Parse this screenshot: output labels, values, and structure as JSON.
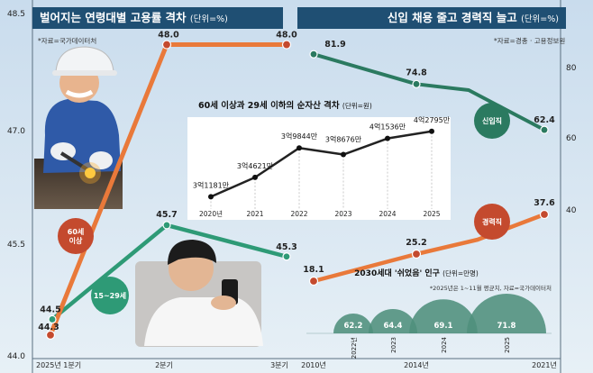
{
  "header_left": {
    "title": "벌어지는 연령대별 고용률 격차",
    "unit": "(단위=%)",
    "source": "*자료=국가데이터처"
  },
  "header_right": {
    "title": "신입 채용 줄고 경력직 늘고",
    "unit": "(단위=%)",
    "source": "*자료=경총 · 고용정보원"
  },
  "colors": {
    "header": "#1f4f73",
    "orange": "#e9793a",
    "green": "#2e9a76",
    "dark_green": "#2b7a60",
    "red": "#c44a2e",
    "dome": "#4f8f7c",
    "inset_line": "#222222"
  },
  "chart_data": [
    {
      "type": "line",
      "categories": [
        "2025년 1분기",
        "2분기",
        "3분기"
      ],
      "y_axis_ticks": [
        "48.5",
        "47.0",
        "45.5",
        "44.0"
      ],
      "ylim": [
        44.0,
        48.5
      ],
      "series": [
        {
          "name": "60세 이상",
          "values": [
            44.3,
            48.0,
            48.0
          ],
          "labels": [
            "44.3",
            "48.0",
            "48.0"
          ]
        },
        {
          "name": "15~29세",
          "values": [
            44.5,
            45.7,
            45.3
          ],
          "labels": [
            "44.5",
            "45.7",
            "45.3"
          ]
        }
      ]
    },
    {
      "type": "line",
      "categories": [
        "2010년",
        "2014년",
        "2021년"
      ],
      "y_axis_ticks": [
        "80",
        "60",
        "40"
      ],
      "series": [
        {
          "name": "신입직",
          "values": [
            81.9,
            74.8,
            62.4
          ],
          "labels": [
            "81.9",
            "74.8",
            "62.4"
          ]
        },
        {
          "name": "경력직",
          "values": [
            18.1,
            25.2,
            37.6
          ],
          "labels": [
            "18.1",
            "25.2",
            "37.6"
          ]
        }
      ]
    },
    {
      "type": "line",
      "title": "60세 이상과 29세 이하의 순자산 격차",
      "unit": "(단위=원)",
      "categories": [
        "2020년",
        "2021",
        "2022",
        "2023",
        "2024",
        "2025"
      ],
      "values": [
        31181,
        34621,
        39844,
        38676,
        41536,
        42795
      ],
      "labels": [
        "3억1181만",
        "3억4621만",
        "3억9844만",
        "3억8676만",
        "4억1536만",
        "4억2795만"
      ]
    },
    {
      "type": "bar",
      "title": "2030세대 '쉬었음' 인구",
      "unit": "(단위=만명)",
      "note": "*2025년은 1~11월 평균치, 자료=국가데이터처",
      "categories": [
        "2022년",
        "2023",
        "2024",
        "2025"
      ],
      "values": [
        62.2,
        64.4,
        69.1,
        71.8
      ],
      "labels": [
        "62.2",
        "64.4",
        "69.1",
        "71.8"
      ]
    }
  ]
}
